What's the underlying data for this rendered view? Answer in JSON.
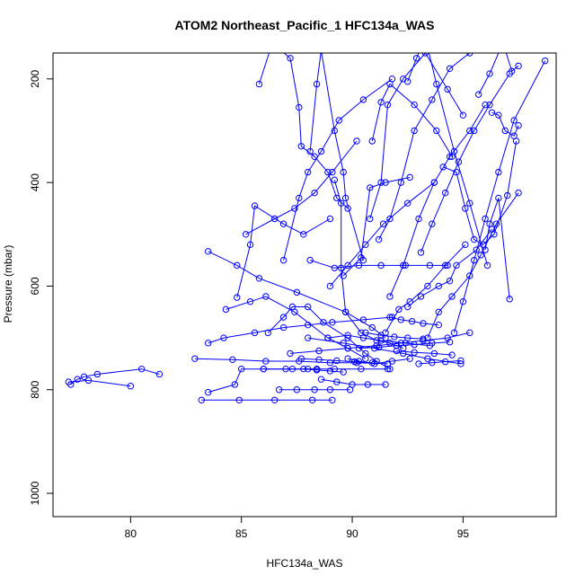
{
  "chart_data": {
    "type": "line",
    "title": "ATOM2 Northeast_Pacific_1 HFC134a_WAS",
    "xlabel": "HFC134a_WAS",
    "ylabel": "Pressure (mbar)",
    "xlim": [
      76.5,
      99.2
    ],
    "ylim": [
      1045,
      150
    ],
    "y_reversed": true,
    "xticks": [
      80,
      85,
      90,
      95
    ],
    "yticks": [
      200,
      400,
      600,
      800,
      1000
    ],
    "grid": false,
    "series_color": "#0000ff",
    "series": [
      {
        "x": [
          77.3,
          77.6,
          77.9,
          78.5,
          80.5,
          81.3
        ],
        "y": [
          790,
          780,
          775,
          770,
          760,
          770
        ]
      },
      {
        "x": [
          77.2,
          78.1,
          80.0
        ],
        "y": [
          785,
          782,
          793
        ]
      },
      {
        "x": [
          83.2,
          84.9,
          86.5,
          88.2,
          89.1
        ],
        "y": [
          820,
          820,
          820,
          820,
          820
        ]
      },
      {
        "x": [
          83.5,
          84.7,
          85.0,
          86.0,
          87.3,
          88.4
        ],
        "y": [
          805,
          790,
          760,
          760,
          760,
          760
        ]
      },
      {
        "x": [
          83.5,
          84.2,
          85.6,
          86.9,
          88.0,
          89.1,
          90.5,
          91.8
        ],
        "y": [
          710,
          700,
          690,
          680,
          675,
          670,
          665,
          660
        ]
      },
      {
        "x": [
          82.9,
          84.6,
          86.1,
          87.6,
          89.0,
          90.2,
          91.6
        ],
        "y": [
          740,
          742,
          745,
          745,
          748,
          748,
          750
        ]
      },
      {
        "x": [
          83.5,
          84.8,
          85.8,
          87.5,
          89.7,
          90.9,
          91.5
        ],
        "y": [
          533,
          560,
          585,
          612,
          650,
          680,
          700
        ]
      },
      {
        "x": [
          84.3,
          85.4,
          86.1,
          87.4,
          88.9,
          89.8,
          90.6
        ],
        "y": [
          645,
          630,
          620,
          650,
          700,
          720,
          740
        ]
      },
      {
        "x": [
          84.8,
          85.4,
          85.6,
          86.9,
          87.8,
          89.0
        ],
        "y": [
          622,
          520,
          445,
          480,
          500,
          470
        ]
      },
      {
        "x": [
          85.8,
          86.4,
          87.2,
          87.6,
          87.7,
          88.3,
          88.9,
          89.3,
          89.8
        ],
        "y": [
          210,
          130,
          160,
          255,
          330,
          350,
          380,
          430,
          450
        ]
      },
      {
        "x": [
          86.2,
          86.9,
          87.3,
          88.0,
          88.7,
          89.8,
          90.6,
          91.1,
          91.7
        ],
        "y": [
          690,
          660,
          640,
          640,
          670,
          700,
          730,
          745,
          760
        ]
      },
      {
        "x": [
          85.2,
          86.5,
          87.4,
          88.3,
          89.1,
          90.2
        ],
        "y": [
          500,
          470,
          450,
          420,
          380,
          320
        ]
      },
      {
        "x": [
          86.9,
          87.6,
          88.0,
          88.6,
          89.4,
          90.5,
          91.8
        ],
        "y": [
          550,
          430,
          380,
          340,
          280,
          240,
          200
        ]
      },
      {
        "x": [
          88.1,
          88.4,
          88.6,
          89.2,
          89.6,
          89.7,
          90.5
        ],
        "y": [
          340,
          210,
          145,
          300,
          380,
          430,
          550
        ]
      },
      {
        "x": [
          89.0,
          89.8,
          90.6,
          91.4,
          92.5,
          93.7
        ],
        "y": [
          600,
          560,
          520,
          480,
          440,
          400
        ]
      },
      {
        "x": [
          89.2,
          89.5,
          89.5,
          89.7,
          90.4,
          91.1,
          91.7,
          92.3
        ],
        "y": [
          395,
          440,
          565,
          650,
          690,
          705,
          710,
          720
        ]
      },
      {
        "x": [
          89.6,
          90.4,
          90.8,
          91.5,
          92.6
        ],
        "y": [
          580,
          545,
          410,
          400,
          390
        ]
      },
      {
        "x": [
          88.1,
          89.2,
          90.3,
          91.3,
          92.4,
          93.5,
          94.3
        ],
        "y": [
          550,
          565,
          560,
          560,
          560,
          560,
          560
        ]
      },
      {
        "x": [
          90.8,
          91.3,
          91.6,
          92.3,
          93.3,
          94.3,
          95.0
        ],
        "y": [
          470,
          400,
          250,
          200,
          150,
          220,
          270
        ]
      },
      {
        "x": [
          90.9,
          91.3,
          91.7,
          92.8,
          93.8,
          94.5
        ],
        "y": [
          320,
          245,
          210,
          250,
          300,
          350
        ]
      },
      {
        "x": [
          91.2,
          91.7,
          92.2,
          92.8,
          93.6,
          94.4,
          95.3
        ],
        "y": [
          510,
          470,
          400,
          300,
          240,
          180,
          150
        ]
      },
      {
        "x": [
          91.5,
          92.1,
          92.6,
          93.4,
          94.2,
          95.1
        ],
        "y": [
          690,
          645,
          630,
          600,
          560,
          520
        ]
      },
      {
        "x": [
          91.7,
          92.3,
          93.0,
          93.7,
          94.4,
          95.3,
          96.0
        ],
        "y": [
          620,
          560,
          470,
          400,
          350,
          300,
          250
        ]
      },
      {
        "x": [
          92.5,
          92.9,
          93.3,
          93.8,
          94.6,
          95.3,
          96.1
        ],
        "y": [
          205,
          160,
          120,
          210,
          340,
          440,
          560
        ]
      },
      {
        "x": [
          93.1,
          93.6,
          94.2,
          94.8,
          95.5,
          96.2,
          97.1
        ],
        "y": [
          535,
          480,
          420,
          360,
          300,
          250,
          190
        ]
      },
      {
        "x": [
          92.5,
          93.1,
          93.9,
          94.4,
          94.7,
          95.6,
          96.3
        ],
        "y": [
          640,
          620,
          600,
          590,
          560,
          530,
          490
        ]
      },
      {
        "x": [
          93.4,
          93.9,
          94.5,
          95.3,
          95.8,
          96.5,
          97.5
        ],
        "y": [
          700,
          650,
          620,
          580,
          540,
          480,
          420
        ]
      },
      {
        "x": [
          94.1,
          94.7,
          95.1,
          95.5,
          95.9,
          96.4,
          97.0,
          97.4
        ],
        "y": [
          370,
          380,
          450,
          510,
          520,
          500,
          425,
          320
        ]
      },
      {
        "x": [
          94.6,
          95.0,
          95.5,
          96.0,
          96.6,
          97.3,
          98.7
        ],
        "y": [
          690,
          630,
          550,
          470,
          380,
          280,
          165
        ]
      },
      {
        "x": [
          95.7,
          96.2,
          96.8,
          97.2,
          97.5
        ],
        "y": [
          230,
          190,
          130,
          185,
          175
        ]
      },
      {
        "x": [
          96.3,
          96.6,
          96.9,
          97.3,
          97.5
        ],
        "y": [
          265,
          270,
          300,
          310,
          290
        ]
      },
      {
        "x": [
          96.0,
          96.2,
          96.6,
          97.1
        ],
        "y": [
          530,
          480,
          430,
          625
        ]
      },
      {
        "x": [
          88.0,
          89.6,
          91.0,
          92.3,
          93.4,
          94.9
        ],
        "y": [
          700,
          710,
          720,
          730,
          740,
          750
        ]
      },
      {
        "x": [
          88.9,
          89.8,
          90.5,
          91.3,
          92.4,
          93.5
        ],
        "y": [
          700,
          695,
          700,
          705,
          710,
          715
        ]
      },
      {
        "x": [
          87.2,
          88.5,
          89.8,
          91.1,
          92.2,
          93.2,
          94.3,
          95.3
        ],
        "y": [
          730,
          725,
          720,
          715,
          710,
          705,
          700,
          690
        ]
      },
      {
        "x": [
          86.0,
          87.0,
          88.0,
          89.2,
          90.4,
          91.6
        ],
        "y": [
          760,
          760,
          760,
          760,
          760,
          760
        ]
      },
      {
        "x": [
          86.7,
          87.5,
          88.3,
          89.0,
          89.9
        ],
        "y": [
          800,
          800,
          800,
          800,
          800
        ]
      },
      {
        "x": [
          88.6,
          89.3,
          90.0,
          90.7,
          91.5
        ],
        "y": [
          780,
          785,
          790,
          790,
          790
        ]
      },
      {
        "x": [
          89.8,
          90.3,
          91.0,
          91.8,
          92.6
        ],
        "y": [
          740,
          745,
          750,
          745,
          740
        ]
      },
      {
        "x": [
          90.3,
          91.2,
          92.0,
          92.8,
          93.6,
          94.4
        ],
        "y": [
          720,
          718,
          715,
          713,
          710,
          708
        ]
      },
      {
        "x": [
          90.6,
          91.3,
          91.9,
          92.5,
          93.2
        ],
        "y": [
          690,
          695,
          698,
          700,
          702
        ]
      },
      {
        "x": [
          91.7,
          92.2,
          92.7,
          93.2,
          93.9
        ],
        "y": [
          660,
          665,
          668,
          672,
          675
        ]
      },
      {
        "x": [
          92.0,
          92.8,
          93.7,
          94.5
        ],
        "y": [
          725,
          728,
          730,
          733
        ]
      },
      {
        "x": [
          93.0,
          93.6,
          94.2,
          94.9
        ],
        "y": [
          750,
          748,
          746,
          744
        ]
      },
      {
        "x": [
          87.7,
          88.5,
          89.3,
          90.1,
          90.9
        ],
        "y": [
          740,
          742,
          744,
          746,
          748
        ]
      },
      {
        "x": [
          87.8,
          88.4,
          89.0,
          89.6
        ],
        "y": [
          760,
          762,
          764,
          766
        ]
      }
    ]
  }
}
